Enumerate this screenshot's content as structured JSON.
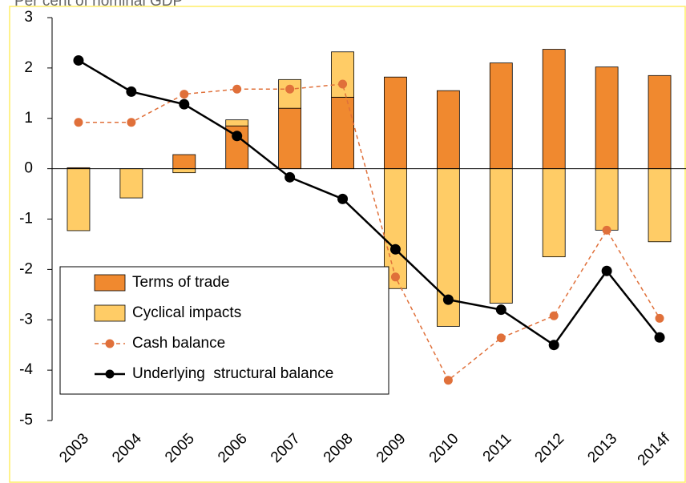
{
  "chart_data": {
    "type": "bar",
    "stacked": true,
    "title": "Per cent of nominal GDP",
    "categories": [
      "2003",
      "2004",
      "2005",
      "2006",
      "2007",
      "2008",
      "2009",
      "2010",
      "2011",
      "2012",
      "2013",
      "2014f"
    ],
    "series": [
      {
        "name": "Terms of trade",
        "type": "bar",
        "color": "#f0892f",
        "values": [
          0.02,
          0,
          0.28,
          0.85,
          1.2,
          1.42,
          1.82,
          1.55,
          2.1,
          2.37,
          2.02,
          1.85
        ]
      },
      {
        "name": "Cyclical impacts",
        "type": "bar",
        "color": "#ffcc66",
        "values": [
          -1.23,
          -0.58,
          -0.08,
          0.12,
          0.57,
          0.9,
          -2.38,
          -3.13,
          -2.67,
          -1.75,
          -1.22,
          -1.45
        ]
      },
      {
        "name": "Cash balance",
        "type": "line",
        "dashed": true,
        "color": "#e0703a",
        "values": [
          0.92,
          0.92,
          1.48,
          1.58,
          1.58,
          1.68,
          -2.15,
          -4.2,
          -3.36,
          -2.92,
          -1.22,
          -2.97
        ]
      },
      {
        "name": "Underlying  structural balance",
        "type": "line",
        "color": "#000000",
        "values": [
          2.15,
          1.53,
          1.28,
          0.65,
          -0.17,
          -0.6,
          -1.6,
          -2.6,
          -2.8,
          -3.5,
          -2.03,
          -3.35
        ]
      }
    ],
    "ylim": [
      -5,
      3
    ],
    "yticks": [
      -5,
      -4,
      -3,
      -2,
      -1,
      0,
      1,
      2,
      3
    ]
  }
}
